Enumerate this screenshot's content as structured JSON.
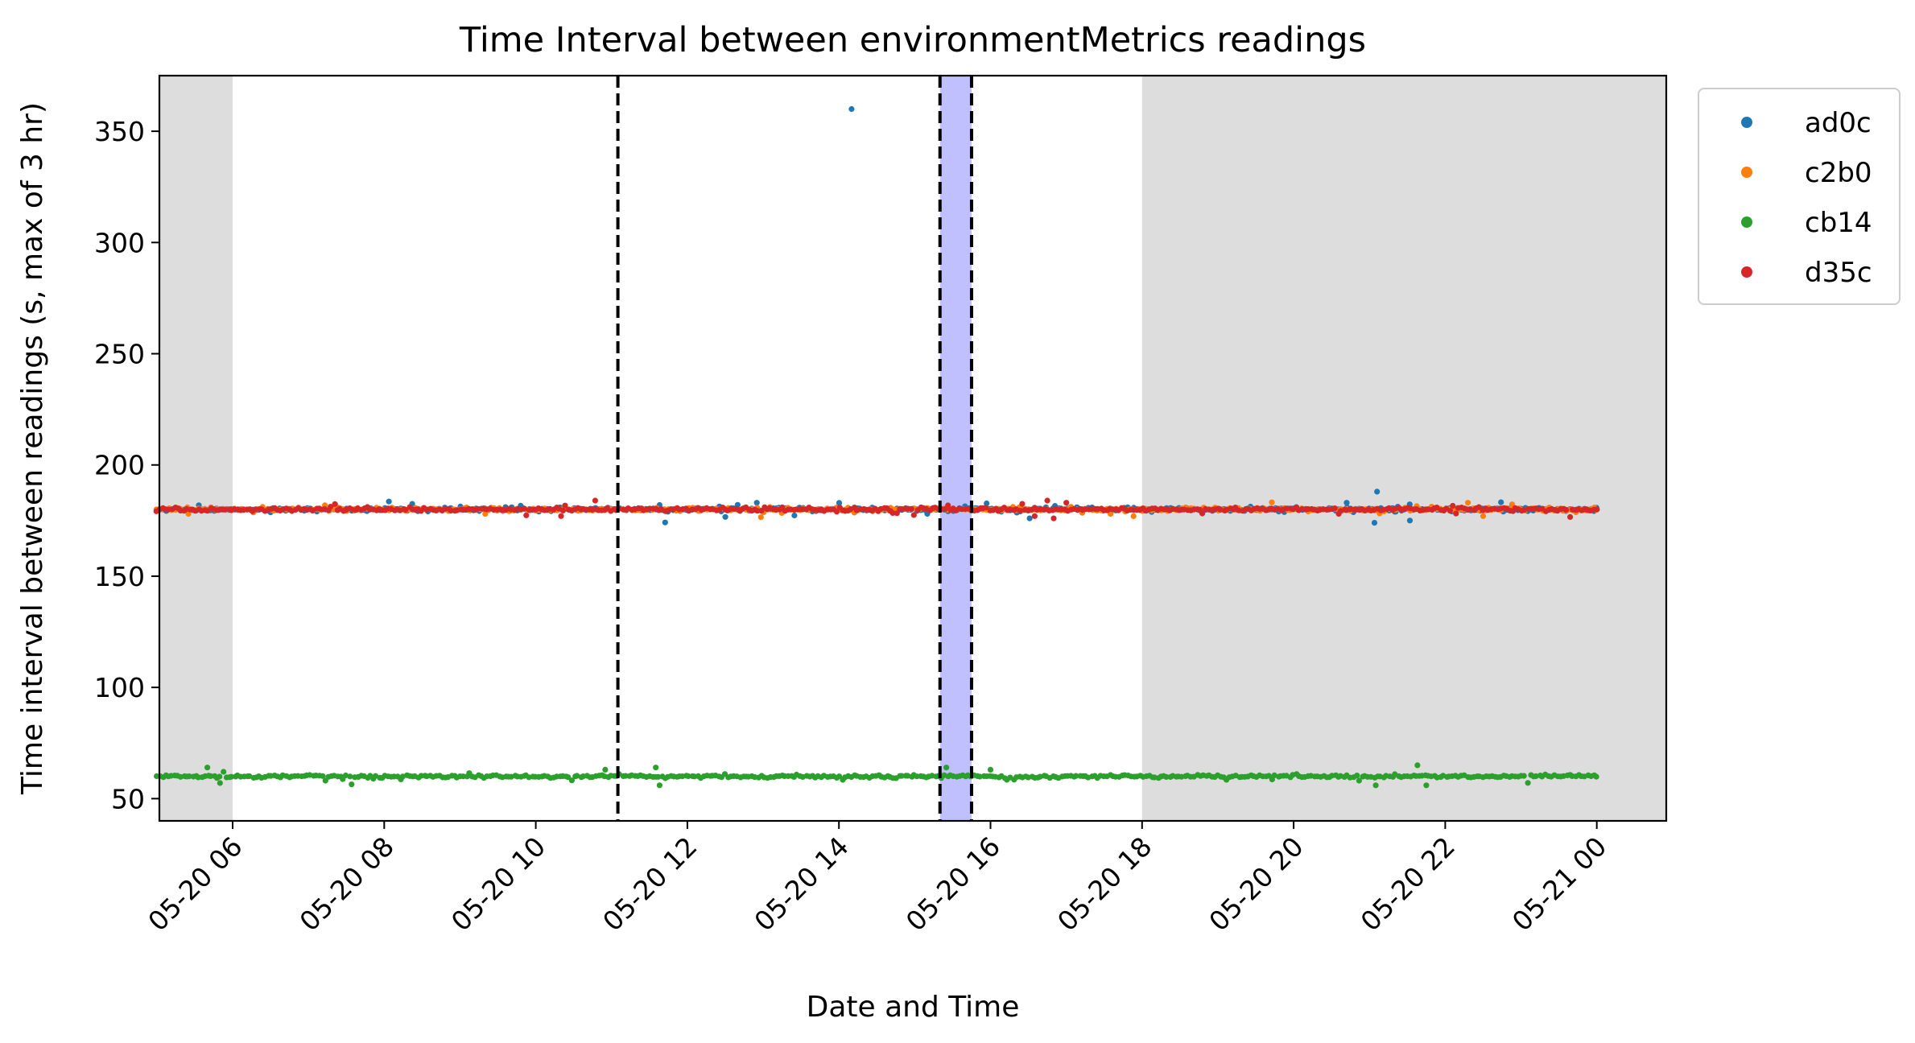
{
  "chart_data": {
    "type": "scatter",
    "title": "Time Interval between environmentMetrics readings",
    "xlabel": "Date and Time",
    "ylabel": "Time interval between readings (s, max of 3 hr)",
    "xlim": [
      "05-20 05:02",
      "05-21 00:55"
    ],
    "ylim": [
      40,
      375
    ],
    "x_tick_labels": [
      "05-20 06",
      "05-20 08",
      "05-20 10",
      "05-20 12",
      "05-20 14",
      "05-20 16",
      "05-20 18",
      "05-20 20",
      "05-20 22",
      "05-21 00"
    ],
    "y_tick_labels": [
      "50",
      "100",
      "150",
      "200",
      "250",
      "300",
      "350"
    ],
    "grid": false,
    "legend_placement": "outside top-right",
    "shaded_regions": [
      {
        "start": "05-20 05:02",
        "end": "05-20 06:00",
        "color": "#dddddd"
      },
      {
        "start": "05-20 18:00",
        "end": "05-21 00:55",
        "color": "#dddddd"
      },
      {
        "start": "05-20 15:20",
        "end": "05-20 15:45",
        "color": "#c0c0ff"
      }
    ],
    "vertical_lines": [
      "05-20 11:05",
      "05-20 15:20",
      "05-20 15:45"
    ],
    "x_range": [
      "05-20 05:00",
      "05-21 00:00"
    ],
    "series": [
      {
        "name": "ad0c",
        "color": "#1f77b4",
        "baseline": 180,
        "spread": 1.2,
        "outliers": [
          {
            "x": "05-20 14:10",
            "y": 360
          },
          {
            "x": "05-20 21:06",
            "y": 188
          },
          {
            "x": "05-20 21:04",
            "y": 174
          },
          {
            "x": "05-20 21:32",
            "y": 175
          },
          {
            "x": "05-20 16:31",
            "y": 176
          },
          {
            "x": "05-20 12:55",
            "y": 183
          },
          {
            "x": "05-20 15:10",
            "y": 178
          },
          {
            "x": "05-20 20:42",
            "y": 183
          },
          {
            "x": "05-20 21:20",
            "y": 179
          },
          {
            "x": "05-20 11:38",
            "y": 182
          }
        ]
      },
      {
        "name": "c2b0",
        "color": "#ff7f0e",
        "baseline": 180,
        "spread": 1.0,
        "outliers": [
          {
            "x": "05-20 22:30",
            "y": 177
          },
          {
            "x": "05-20 22:18",
            "y": 183
          },
          {
            "x": "05-20 05:25",
            "y": 178
          },
          {
            "x": "05-20 09:20",
            "y": 178
          },
          {
            "x": "05-20 17:35",
            "y": 178
          }
        ]
      },
      {
        "name": "cb14",
        "color": "#2ca02c",
        "baseline": 60,
        "spread": 0.9,
        "outliers": [
          {
            "x": "05-20 05:40",
            "y": 64
          },
          {
            "x": "05-20 05:50",
            "y": 57
          },
          {
            "x": "05-20 11:35",
            "y": 64
          },
          {
            "x": "05-20 11:38",
            "y": 56
          },
          {
            "x": "05-20 10:55",
            "y": 63
          },
          {
            "x": "05-20 15:25",
            "y": 64
          },
          {
            "x": "05-20 21:38",
            "y": 65
          },
          {
            "x": "05-20 21:45",
            "y": 56
          },
          {
            "x": "05-20 21:05",
            "y": 56
          },
          {
            "x": "05-20 16:00",
            "y": 63
          }
        ]
      },
      {
        "name": "d35c",
        "color": "#d62728",
        "baseline": 180,
        "spread": 1.0,
        "outliers": [
          {
            "x": "05-20 10:47",
            "y": 184
          },
          {
            "x": "05-20 16:45",
            "y": 184
          },
          {
            "x": "05-20 16:50",
            "y": 176
          },
          {
            "x": "05-20 16:35",
            "y": 177
          },
          {
            "x": "05-20 17:00",
            "y": 183
          },
          {
            "x": "05-20 10:20",
            "y": 177
          }
        ]
      }
    ]
  }
}
